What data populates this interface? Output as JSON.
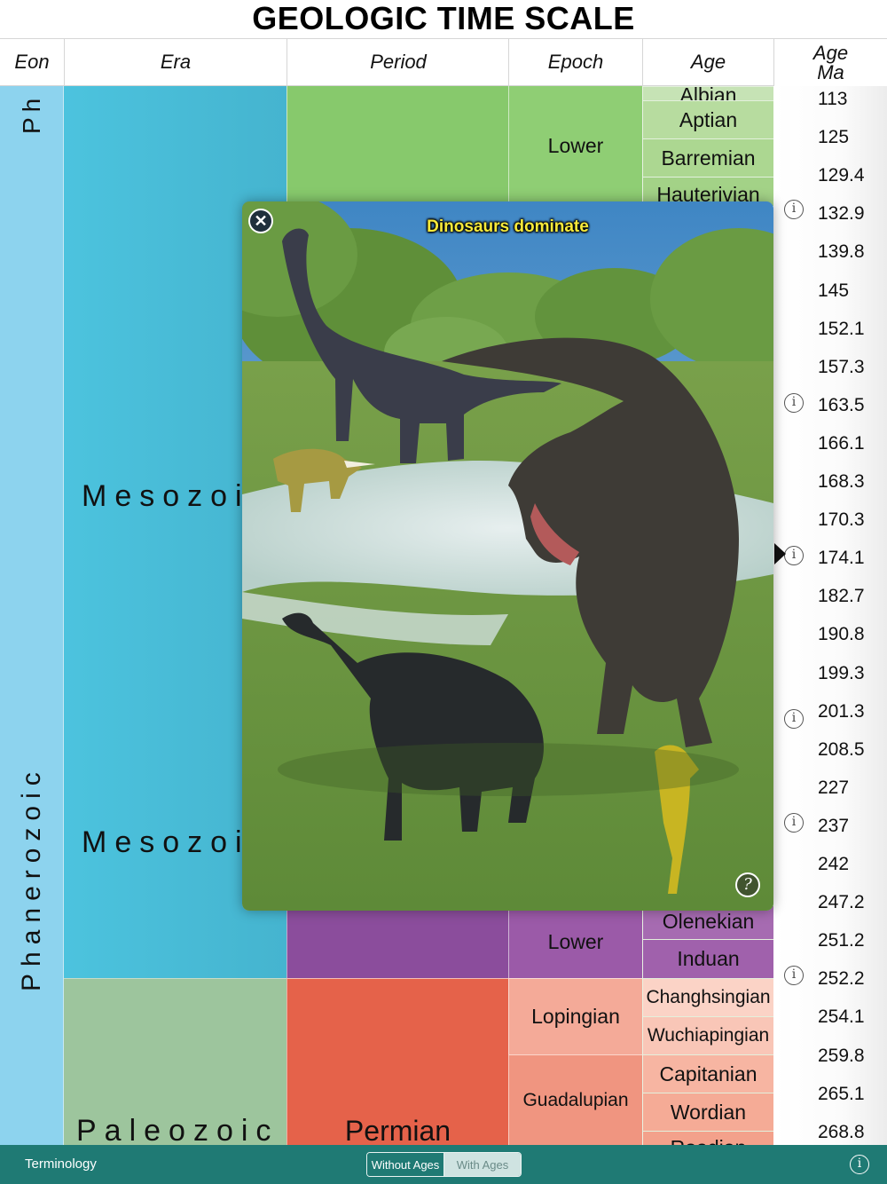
{
  "title": "GEOLOGIC TIME SCALE",
  "headers": {
    "eon": "Eon",
    "era": "Era",
    "period": "Period",
    "epoch": "Epoch",
    "age": "Age",
    "age_ma_line1": "Age",
    "age_ma_line2": "Ma"
  },
  "eons": {
    "top_label": "Ph",
    "main_label": "Phanerozoic"
  },
  "eras": {
    "mesozoic_upper": "Mesozoi",
    "mesozoic_lower": "Mesozoi",
    "paleozoic": "Paleozoic"
  },
  "periods": {
    "permian": "Permian"
  },
  "epochs": {
    "lower_cretaceous": "Lower",
    "lower_triassic": "Lower",
    "lopingian": "Lopingian",
    "guadalupian": "Guadalupian"
  },
  "ages": {
    "albian": "Albian",
    "aptian": "Aptian",
    "barremian": "Barremian",
    "hauterivian": "Hauterivian",
    "olenekian": "Olenekian",
    "induan": "Induan",
    "changhsingian": "Changhsingian",
    "wuchiapingian": "Wuchiapingian",
    "capitanian": "Capitanian",
    "wordian": "Wordian",
    "roadian": "Roadian"
  },
  "ma_values": [
    "113",
    "125",
    "129.4",
    "132.9",
    "139.8",
    "145",
    "152.1",
    "157.3",
    "163.5",
    "166.1",
    "168.3",
    "170.3",
    "174.1",
    "182.7",
    "190.8",
    "199.3",
    "201.3",
    "208.5",
    "227",
    "237",
    "242",
    "247.2",
    "251.2",
    "252.2",
    "254.1",
    "259.8",
    "265.1",
    "268.8"
  ],
  "popup": {
    "caption": "Dinosaurs dominate",
    "close_icon": "close-icon",
    "help_icon": "help-icon"
  },
  "toolbar": {
    "terminology": "Terminology",
    "without_ages": "Without Ages",
    "with_ages": "With Ages",
    "selected": "Without Ages"
  },
  "colors": {
    "eon": "#8dd3ee",
    "mesozoic": "#4cc3de",
    "paleozoic": "#9dc59d",
    "cretaceous": "#87c96c",
    "triassic": "#8b4d9c",
    "permian": "#e5624a",
    "toolbar": "#1f7a74",
    "caption": "#f8ea3a"
  }
}
